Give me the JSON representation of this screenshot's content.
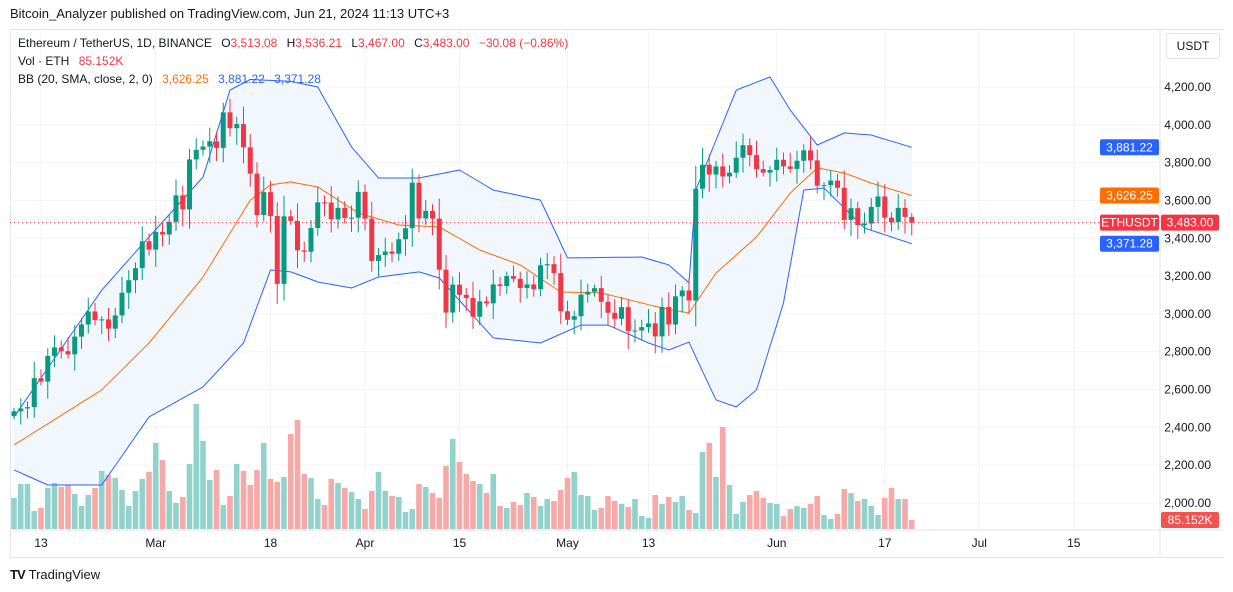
{
  "publisher_line": "Bitcoin_Analyzer published on TradingView.com, Jun 21, 2024 11:13 UTC+3",
  "legend": {
    "symbol": "Ethereum / TetherUS, 1D, BINANCE",
    "open_label": "O",
    "open": "3,513.08",
    "high_label": "H",
    "high": "3,536.21",
    "low_label": "L",
    "low": "3,467.00",
    "close_label": "C",
    "close": "3,483.00",
    "change": "−30.08 (−0.86%)",
    "volume_label": "Vol · ETH",
    "volume": "85.152K",
    "bb_label": "BB (20, SMA, close, 2, 0)",
    "bb_basis": "3,626.25",
    "bb_upper": "3,881.22",
    "bb_lower": "3,371.28"
  },
  "unit_button": "USDT",
  "footer_brand": "TradingView",
  "colors": {
    "up": "#089981",
    "down": "#f23645",
    "vol_up": "#92d2cc",
    "vol_down": "#f7a9a7",
    "bb_band": "#2962ff",
    "bb_basis": "#ff6d00",
    "bb_fill": "#f0f6fd",
    "price_line": "#f23645"
  },
  "chart_data": {
    "type": "candlestick",
    "symbol_tag": "ETHUSDT",
    "last_price_tag": "3,483.00",
    "bb_upper_tag": "3,881.22",
    "bb_basis_tag": "3,626.25",
    "bb_lower_tag": "3,371.28",
    "volume_tag": "85.152K",
    "ylim": [
      1960,
      4360
    ],
    "y_ticks": [
      "4,200.00",
      "4,000.00",
      "3,800.00",
      "3,600.00",
      "3,400.00",
      "3,200.00",
      "3,000.00",
      "2,800.00",
      "2,600.00",
      "2,400.00",
      "2,200.00",
      "2,000.00"
    ],
    "y_tick_values": [
      4200,
      4000,
      3800,
      3600,
      3400,
      3200,
      3000,
      2800,
      2600,
      2400,
      2200,
      2000
    ],
    "x_ticks": [
      {
        "label": "13",
        "date": "Feb 13"
      },
      {
        "label": "Mar",
        "date": "Mar 1"
      },
      {
        "label": "18",
        "date": "Mar 18"
      },
      {
        "label": "Apr",
        "date": "Apr 1"
      },
      {
        "label": "15",
        "date": "Apr 15"
      },
      {
        "label": "May",
        "date": "May 1"
      },
      {
        "label": "13",
        "date": "May 13"
      },
      {
        "label": "Jun",
        "date": "Jun 1"
      },
      {
        "label": "17",
        "date": "Jun 17"
      },
      {
        "label": "Jul",
        "date": "Jul 1"
      },
      {
        "label": "15",
        "date": "Jul 15"
      }
    ],
    "future_dates": [
      "Jun 22",
      "Jun 23",
      "Jun 24",
      "Jun 25",
      "Jun 26",
      "Jun 27",
      "Jun 28",
      "Jun 29",
      "Jun 30",
      "Jul 1",
      "Jul 2",
      "Jul 3",
      "Jul 4",
      "Jul 5",
      "Jul 6",
      "Jul 7",
      "Jul 8",
      "Jul 9",
      "Jul 10",
      "Jul 11",
      "Jul 12",
      "Jul 13",
      "Jul 14",
      "Jul 15"
    ],
    "candles": [
      [
        "Feb 9",
        2485
      ],
      [
        "Feb 10",
        2500
      ],
      [
        "Feb 11",
        2507
      ],
      [
        "Feb 12",
        2660
      ],
      [
        "Feb 13",
        2642
      ],
      [
        "Feb 14",
        2778
      ],
      [
        "Feb 15",
        2823
      ],
      [
        "Feb 16",
        2803
      ],
      [
        "Feb 17",
        2786
      ],
      [
        "Feb 18",
        2880
      ],
      [
        "Feb 19",
        2944
      ],
      [
        "Feb 20",
        3013
      ],
      [
        "Feb 21",
        2967
      ],
      [
        "Feb 22",
        2971
      ],
      [
        "Feb 23",
        2922
      ],
      [
        "Feb 24",
        2992
      ],
      [
        "Feb 25",
        3112
      ],
      [
        "Feb 26",
        3178
      ],
      [
        "Feb 27",
        3242
      ],
      [
        "Feb 28",
        3384
      ],
      [
        "Feb 29",
        3340
      ],
      [
        "Mar 1",
        3433
      ],
      [
        "Mar 2",
        3420
      ],
      [
        "Mar 3",
        3487
      ],
      [
        "Mar 4",
        3627
      ],
      [
        "Mar 5",
        3553
      ],
      [
        "Mar 6",
        3817
      ],
      [
        "Mar 7",
        3868
      ],
      [
        "Mar 8",
        3885
      ],
      [
        "Mar 9",
        3913
      ],
      [
        "Mar 10",
        3878
      ],
      [
        "Mar 11",
        4066
      ],
      [
        "Mar 12",
        3982
      ],
      [
        "Mar 13",
        4004
      ],
      [
        "Mar 14",
        3881
      ],
      [
        "Mar 15",
        3742
      ],
      [
        "Mar 16",
        3523
      ],
      [
        "Mar 17",
        3644
      ],
      [
        "Mar 18",
        3518
      ],
      [
        "Mar 19",
        3159
      ],
      [
        "Mar 20",
        3516
      ],
      [
        "Mar 21",
        3492
      ],
      [
        "Mar 22",
        3336
      ],
      [
        "Mar 23",
        3329
      ],
      [
        "Mar 24",
        3454
      ],
      [
        "Mar 25",
        3590
      ],
      [
        "Mar 26",
        3589
      ],
      [
        "Mar 27",
        3500
      ],
      [
        "Mar 28",
        3561
      ],
      [
        "Mar 29",
        3508
      ],
      [
        "Mar 30",
        3509
      ],
      [
        "Mar 31",
        3645
      ],
      [
        "Apr 1",
        3504
      ],
      [
        "Apr 2",
        3280
      ],
      [
        "Apr 3",
        3311
      ],
      [
        "Apr 4",
        3330
      ],
      [
        "Apr 5",
        3318
      ],
      [
        "Apr 6",
        3395
      ],
      [
        "Apr 7",
        3453
      ],
      [
        "Apr 8",
        3694
      ],
      [
        "Apr 9",
        3505
      ],
      [
        "Apr 10",
        3545
      ],
      [
        "Apr 11",
        3504
      ],
      [
        "Apr 12",
        3234
      ],
      [
        "Apr 13",
        3007
      ],
      [
        "Apr 14",
        3155
      ],
      [
        "Apr 15",
        3101
      ],
      [
        "Apr 16",
        3084
      ],
      [
        "Apr 17",
        2985
      ],
      [
        "Apr 18",
        3066
      ],
      [
        "Apr 19",
        3056
      ],
      [
        "Apr 20",
        3156
      ],
      [
        "Apr 21",
        3147
      ],
      [
        "Apr 22",
        3200
      ],
      [
        "Apr 23",
        3186
      ],
      [
        "Apr 24",
        3137
      ],
      [
        "Apr 25",
        3156
      ],
      [
        "Apr 26",
        3131
      ],
      [
        "Apr 27",
        3257
      ],
      [
        "Apr 28",
        3263
      ],
      [
        "Apr 29",
        3216
      ],
      [
        "Apr 30",
        3014
      ],
      [
        "May 1",
        2969
      ],
      [
        "May 2",
        2988
      ],
      [
        "May 3",
        3102
      ],
      [
        "May 4",
        3117
      ],
      [
        "May 5",
        3136
      ],
      [
        "May 6",
        3064
      ],
      [
        "May 7",
        3006
      ],
      [
        "May 8",
        2974
      ],
      [
        "May 9",
        3036
      ],
      [
        "May 10",
        2910
      ],
      [
        "May 11",
        2912
      ],
      [
        "May 12",
        2930
      ],
      [
        "May 13",
        2950
      ],
      [
        "May 14",
        2881
      ],
      [
        "May 15",
        3037
      ],
      [
        "May 16",
        2944
      ],
      [
        "May 17",
        3093
      ],
      [
        "May 18",
        3124
      ],
      [
        "May 19",
        3071
      ],
      [
        "May 20",
        3662
      ],
      [
        "May 21",
        3789
      ],
      [
        "May 22",
        3737
      ],
      [
        "May 23",
        3780
      ],
      [
        "May 24",
        3727
      ],
      [
        "May 25",
        3747
      ],
      [
        "May 26",
        3826
      ],
      [
        "May 27",
        3892
      ],
      [
        "May 28",
        3840
      ],
      [
        "May 29",
        3766
      ],
      [
        "May 30",
        3747
      ],
      [
        "May 31",
        3761
      ],
      [
        "Jun 1",
        3815
      ],
      [
        "Jun 2",
        3780
      ],
      [
        "Jun 3",
        3767
      ],
      [
        "Jun 4",
        3810
      ],
      [
        "Jun 5",
        3865
      ],
      [
        "Jun 6",
        3812
      ],
      [
        "Jun 7",
        3678
      ],
      [
        "Jun 8",
        3681
      ],
      [
        "Jun 9",
        3705
      ],
      [
        "Jun 10",
        3667
      ],
      [
        "Jun 11",
        3497
      ],
      [
        "Jun 12",
        3559
      ],
      [
        "Jun 13",
        3470
      ],
      [
        "Jun 14",
        3478
      ],
      [
        "Jun 15",
        3566
      ],
      [
        "Jun 16",
        3621
      ],
      [
        "Jun 17",
        3509
      ],
      [
        "Jun 18",
        3485
      ],
      [
        "Jun 19",
        3561
      ],
      [
        "Jun 20",
        3513
      ],
      [
        "Jun 21",
        3483
      ]
    ],
    "first_open": 2460,
    "volume_k": [
      295,
      428,
      428,
      171,
      200,
      390,
      437,
      399,
      418,
      333,
      219,
      323,
      390,
      552,
      514,
      485,
      371,
      219,
      361,
      476,
      542,
      818,
      656,
      361,
      247,
      304,
      618,
      1189,
      837,
      466,
      561,
      228,
      314,
      618,
      552,
      418,
      561,
      818,
      476,
      447,
      495,
      903,
      1037,
      523,
      485,
      285,
      228,
      476,
      437,
      390,
      352,
      285,
      190,
      361,
      542,
      361,
      314,
      304,
      162,
      190,
      428,
      399,
      342,
      295,
      599,
      856,
      637,
      523,
      456,
      428,
      342,
      523,
      219,
      200,
      257,
      228,
      342,
      304,
      219,
      285,
      266,
      371,
      485,
      542,
      323,
      314,
      181,
      200,
      314,
      266,
      238,
      209,
      285,
      124,
      105,
      323,
      238,
      304,
      257,
      314,
      181,
      152,
      732,
      818,
      495,
      970,
      418,
      143,
      257,
      323,
      361,
      295,
      247,
      238,
      124,
      190,
      219,
      200,
      238,
      314,
      133,
      95,
      143,
      380,
      342,
      266,
      285,
      219,
      133,
      295,
      390,
      285,
      285,
      85.152
    ],
    "bb_upper": [
      [
        "Feb 9",
        2455
      ],
      [
        "Feb 22",
        3126
      ],
      [
        "Feb 29",
        3407
      ],
      [
        "Mar 8",
        3724
      ],
      [
        "Mar 12",
        4184
      ],
      [
        "Mar 15",
        4240
      ],
      [
        "Mar 21",
        4230
      ],
      [
        "Mar 25",
        4200
      ],
      [
        "Mar 30",
        3883
      ],
      [
        "Apr 3",
        3719
      ],
      [
        "Apr 9",
        3719
      ],
      [
        "Apr 15",
        3761
      ],
      [
        "Apr 20",
        3655
      ],
      [
        "Apr 27",
        3602
      ],
      [
        "May 1",
        3296
      ],
      [
        "May 12",
        3301
      ],
      [
        "May 16",
        3259
      ],
      [
        "May 19",
        3164
      ],
      [
        "May 20",
        3655
      ],
      [
        "May 26",
        4184
      ],
      [
        "May 31",
        4253
      ],
      [
        "Jun 3",
        4078
      ],
      [
        "Jun 7",
        3893
      ],
      [
        "Jun 11",
        3957
      ],
      [
        "Jun 15",
        3946
      ],
      [
        "Jun 21",
        3881
      ]
    ],
    "bb_basis": [
      [
        "Feb 9",
        2307
      ],
      [
        "Feb 22",
        2598
      ],
      [
        "Feb 29",
        2846
      ],
      [
        "Mar 8",
        3195
      ],
      [
        "Mar 15",
        3602
      ],
      [
        "Mar 18",
        3682
      ],
      [
        "Mar 21",
        3698
      ],
      [
        "Mar 25",
        3671
      ],
      [
        "Mar 31",
        3534
      ],
      [
        "Apr 6",
        3470
      ],
      [
        "Apr 12",
        3460
      ],
      [
        "Apr 18",
        3338
      ],
      [
        "Apr 24",
        3259
      ],
      [
        "Apr 30",
        3116
      ],
      [
        "May 6",
        3111
      ],
      [
        "May 15",
        3031
      ],
      [
        "May 19",
        3005
      ],
      [
        "May 23",
        3216
      ],
      [
        "May 29",
        3407
      ],
      [
        "Jun 3",
        3639
      ],
      [
        "Jun 7",
        3772
      ],
      [
        "Jun 11",
        3745
      ],
      [
        "Jun 15",
        3692
      ],
      [
        "Jun 21",
        3626
      ]
    ],
    "bb_lower": [
      [
        "Feb 9",
        2175
      ],
      [
        "Feb 14",
        2095
      ],
      [
        "Feb 22",
        2095
      ],
      [
        "Feb 29",
        2455
      ],
      [
        "Mar 8",
        2614
      ],
      [
        "Mar 14",
        2846
      ],
      [
        "Mar 18",
        3232
      ],
      [
        "Mar 21",
        3222
      ],
      [
        "Mar 25",
        3169
      ],
      [
        "Mar 30",
        3137
      ],
      [
        "Apr 3",
        3195
      ],
      [
        "Apr 9",
        3222
      ],
      [
        "Apr 12",
        3190
      ],
      [
        "Apr 20",
        2873
      ],
      [
        "Apr 27",
        2846
      ],
      [
        "May 3",
        2941
      ],
      [
        "May 7",
        2941
      ],
      [
        "May 13",
        2846
      ],
      [
        "May 16",
        2809
      ],
      [
        "May 19",
        2851
      ],
      [
        "May 20",
        2772
      ],
      [
        "May 23",
        2545
      ],
      [
        "May 26",
        2508
      ],
      [
        "May 29",
        2598
      ],
      [
        "Jun 2",
        3058
      ],
      [
        "Jun 5",
        3655
      ],
      [
        "Jun 8",
        3666
      ],
      [
        "Jun 14",
        3454
      ],
      [
        "Jun 21",
        3371
      ]
    ]
  }
}
